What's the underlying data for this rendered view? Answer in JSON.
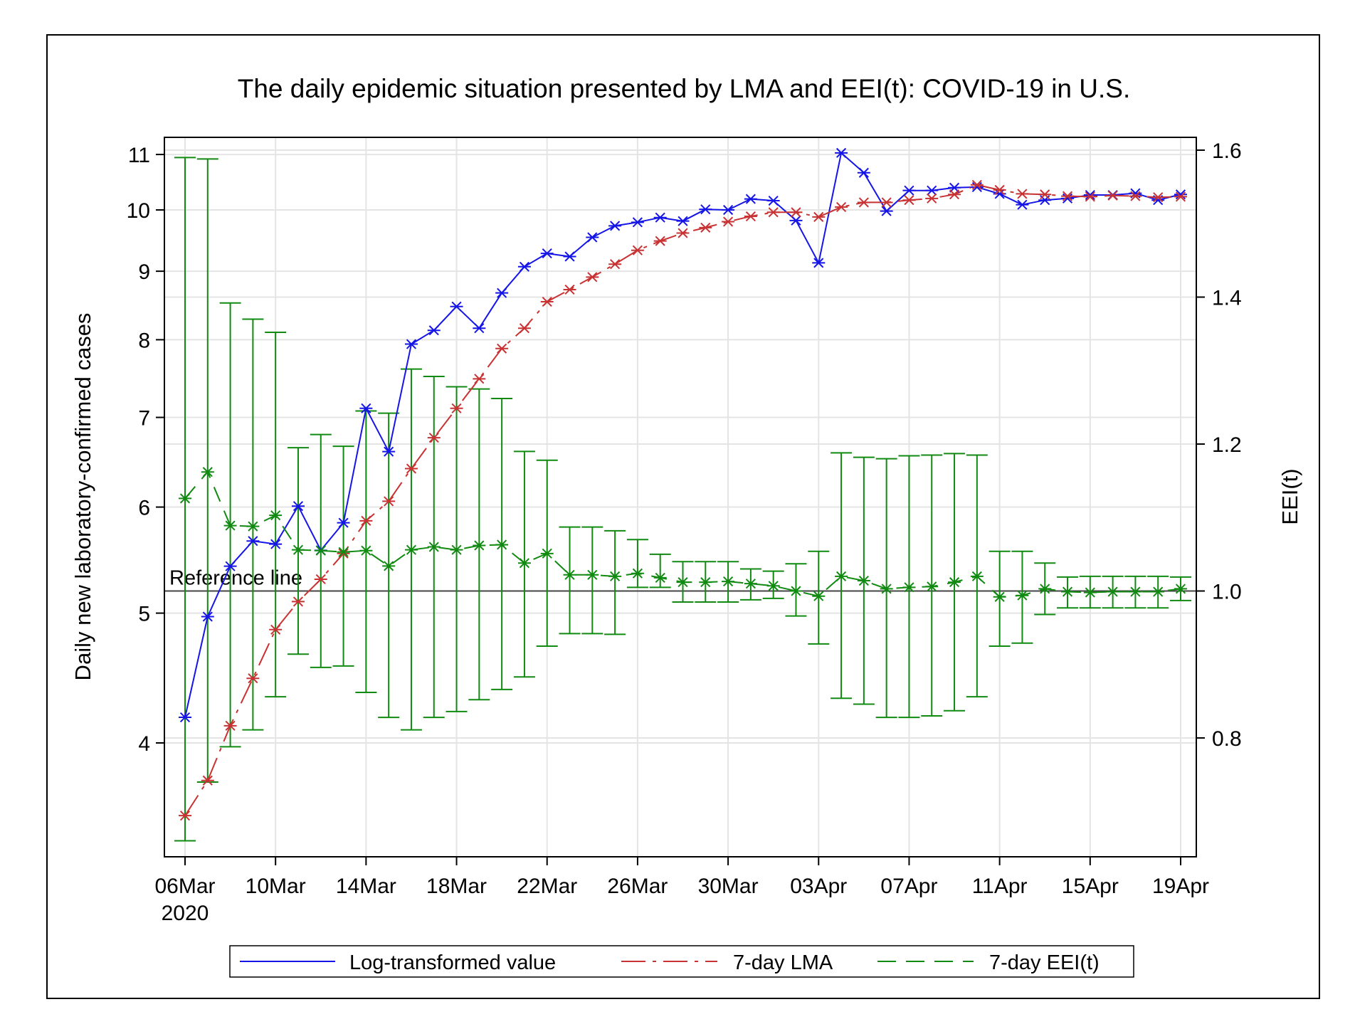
{
  "chart_data": {
    "type": "line",
    "title": "The daily epidemic situation presented by LMA and EEI(t): COVID-19 in U.S.",
    "xlabel": "",
    "ylabel_left": "Daily new laboratory-confirmed cases",
    "ylabel_right": "EEI(t)",
    "x_start": "06Mar2020",
    "x_count": 45,
    "x_ticks": [
      {
        "day": 0,
        "label": "06Mar",
        "sublabel": "2020"
      },
      {
        "day": 4,
        "label": "10Mar"
      },
      {
        "day": 8,
        "label": "14Mar"
      },
      {
        "day": 12,
        "label": "18Mar"
      },
      {
        "day": 16,
        "label": "22Mar"
      },
      {
        "day": 20,
        "label": "26Mar"
      },
      {
        "day": 24,
        "label": "30Mar"
      },
      {
        "day": 28,
        "label": "03Apr"
      },
      {
        "day": 32,
        "label": "07Apr"
      },
      {
        "day": 36,
        "label": "11Apr"
      },
      {
        "day": 40,
        "label": "15Apr"
      },
      {
        "day": 44,
        "label": "19Apr"
      }
    ],
    "y_left_ticks": [
      "4",
      "5",
      "6",
      "7",
      "8",
      "9",
      "10",
      "11"
    ],
    "y_left_scale": "log",
    "y_right_ticks": [
      "0.8",
      "1.0",
      "1.2",
      "1.4",
      "1.6"
    ],
    "y_right_range": [
      0.64,
      1.62
    ],
    "reference_line": {
      "value": 1.0,
      "axis": "right",
      "label": "Reference line"
    },
    "grid": true,
    "legend_position": "bottom",
    "series": [
      {
        "name": "Log-transformed value",
        "axis": "left",
        "color": "#1515e8",
        "dash": "solid",
        "values": [
          4.18,
          4.97,
          5.42,
          5.66,
          5.63,
          6.01,
          5.57,
          5.84,
          7.11,
          6.6,
          7.94,
          8.13,
          8.47,
          8.16,
          8.67,
          9.07,
          9.28,
          9.23,
          9.54,
          9.73,
          9.79,
          9.87,
          9.81,
          10.01,
          10.0,
          10.19,
          10.16,
          9.82,
          9.13,
          11.03,
          10.66,
          9.98,
          10.34,
          10.34,
          10.39,
          10.4,
          10.28,
          10.09,
          10.17,
          10.2,
          10.26,
          10.26,
          10.29,
          10.17,
          10.27
        ]
      },
      {
        "name": "7-day LMA",
        "axis": "left",
        "color": "#c83232",
        "dash": "dashdot",
        "values": [
          3.53,
          3.75,
          4.12,
          4.47,
          4.86,
          5.1,
          5.3,
          5.54,
          5.86,
          6.06,
          6.41,
          6.76,
          7.11,
          7.48,
          7.88,
          8.16,
          8.54,
          8.72,
          8.91,
          9.11,
          9.33,
          9.48,
          9.61,
          9.7,
          9.8,
          9.89,
          9.96,
          9.96,
          9.88,
          10.05,
          10.13,
          10.13,
          10.17,
          10.2,
          10.27,
          10.44,
          10.35,
          10.28,
          10.27,
          10.24,
          10.23,
          10.25,
          10.24,
          10.22,
          10.23
        ]
      },
      {
        "name": "7-day EEI(t)",
        "axis": "right",
        "color": "#108a10",
        "dash": "dash",
        "values": [
          1.126,
          1.162,
          1.089,
          1.088,
          1.103,
          1.056,
          1.055,
          1.053,
          1.055,
          1.034,
          1.056,
          1.06,
          1.056,
          1.062,
          1.063,
          1.038,
          1.051,
          1.022,
          1.022,
          1.02,
          1.024,
          1.018,
          1.012,
          1.012,
          1.013,
          1.01,
          1.007,
          1.0,
          0.993,
          1.02,
          1.014,
          1.003,
          1.005,
          1.006,
          1.012,
          1.02,
          0.992,
          0.994,
          1.003,
          0.999,
          0.998,
          0.999,
          0.999,
          0.999,
          1.003
        ],
        "lower": [
          0.66,
          0.74,
          0.788,
          0.811,
          0.856,
          0.914,
          0.896,
          0.898,
          0.862,
          0.828,
          0.811,
          0.828,
          0.836,
          0.852,
          0.866,
          0.883,
          0.925,
          0.942,
          0.942,
          0.941,
          1.005,
          1.005,
          0.985,
          0.985,
          0.985,
          0.988,
          0.99,
          0.966,
          0.928,
          0.854,
          0.846,
          0.828,
          0.828,
          0.83,
          0.837,
          0.856,
          0.925,
          0.929,
          0.968,
          0.977,
          0.977,
          0.977,
          0.977,
          0.977,
          0.987
        ],
        "upper": [
          1.59,
          1.588,
          1.392,
          1.37,
          1.352,
          1.195,
          1.213,
          1.197,
          1.245,
          1.242,
          1.302,
          1.292,
          1.278,
          1.275,
          1.262,
          1.19,
          1.178,
          1.087,
          1.087,
          1.082,
          1.07,
          1.05,
          1.04,
          1.04,
          1.04,
          1.03,
          1.027,
          1.037,
          1.054,
          1.188,
          1.182,
          1.18,
          1.184,
          1.185,
          1.187,
          1.185,
          1.054,
          1.054,
          1.038,
          1.019,
          1.02,
          1.02,
          1.02,
          1.02,
          1.019
        ]
      }
    ]
  }
}
